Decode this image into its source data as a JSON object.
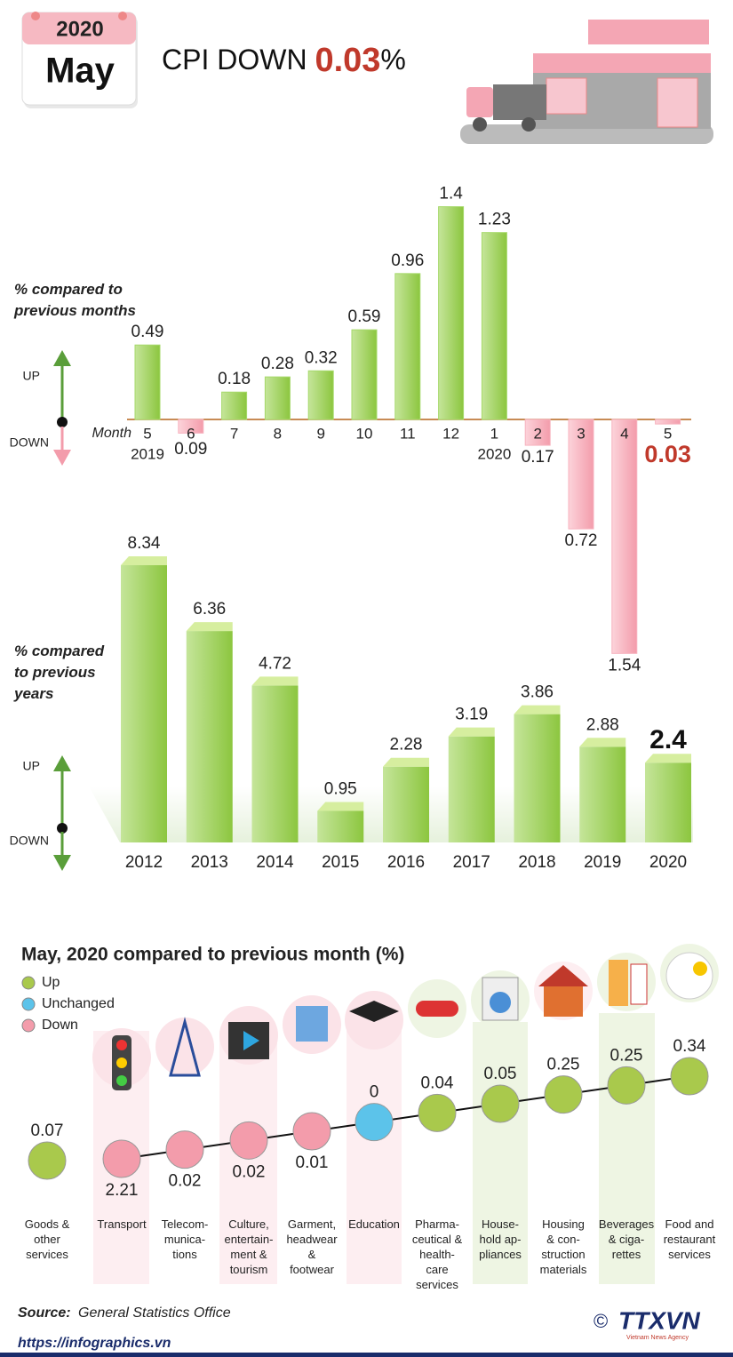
{
  "header": {
    "year": "2020",
    "month": "May",
    "headline": "CPI DOWN ",
    "headline_value": "0.03",
    "headline_unit": "%"
  },
  "chart_data": [
    {
      "type": "bar",
      "label": "% compared to previous months",
      "up_label": "UP",
      "down_label": "DOWN",
      "axis_label": "Month",
      "categories": [
        "5",
        "6",
        "7",
        "8",
        "9",
        "10",
        "11",
        "12",
        "1",
        "2",
        "3",
        "4",
        "5"
      ],
      "category_years": [
        "2019",
        null,
        null,
        null,
        null,
        null,
        null,
        null,
        "2020",
        null,
        null,
        null,
        null
      ],
      "values": [
        0.49,
        -0.09,
        0.18,
        0.28,
        0.32,
        0.59,
        0.96,
        1.4,
        1.23,
        -0.17,
        -0.72,
        -1.54,
        -0.03
      ],
      "value_labels": [
        "0.49",
        "0.09",
        "0.18",
        "0.28",
        "0.32",
        "0.59",
        "0.96",
        "1.4",
        "1.23",
        "0.17",
        "0.72",
        "1.54",
        "0.03"
      ],
      "up_color": "#a6d96a",
      "down_color": "#f7b3bf",
      "ylim": [
        -1.6,
        1.5
      ]
    },
    {
      "type": "bar3d",
      "label": "% compared to previous years",
      "up_label": "UP",
      "down_label": "DOWN",
      "categories": [
        "2012",
        "2013",
        "2014",
        "2015",
        "2016",
        "2017",
        "2018",
        "2019",
        "2020"
      ],
      "values": [
        8.34,
        6.36,
        4.72,
        0.95,
        2.28,
        3.19,
        3.86,
        2.88,
        2.4
      ],
      "color": "#8cc63f",
      "ylim": [
        0,
        9
      ]
    },
    {
      "type": "dot",
      "title": "May, 2020 compared to previous month (%)",
      "legend": [
        {
          "name": "Up",
          "color": "#a9c94c"
        },
        {
          "name": "Unchanged",
          "color": "#5cc3ea"
        },
        {
          "name": "Down",
          "color": "#f39cab"
        }
      ],
      "categories": [
        "Goods &\nother\nservices",
        "Transport",
        "Telecom-\nmunica-\ntions",
        "Culture,\nentertain-\nment &\ntourism",
        "Garment,\nheadwear\n&\nfootwear",
        "Education",
        "Pharma-\nceutical &\nhealth-\ncare\nservices",
        "House-\nhold ap-\npliances",
        "Housing\n& con-\nstruction\nmaterials",
        "Beverages\n& ciga-\nrettes",
        "Food and\nrestaurant\nservices"
      ],
      "values": [
        0.07,
        -2.21,
        -0.02,
        -0.02,
        -0.01,
        0,
        0.04,
        0.05,
        0.25,
        0.25,
        0.34
      ],
      "value_labels": [
        "0.07",
        "2.21",
        "0.02",
        "0.02",
        "0.01",
        "0",
        "0.04",
        "0.05",
        "0.25",
        "0.25",
        "0.34"
      ]
    }
  ],
  "footer": {
    "source_label": "Source:",
    "source": "General Statistics Office",
    "url": "https://infographics.vn",
    "copyright": "©",
    "logo": "TTXVN",
    "agency": "Vietnam News Agency"
  }
}
